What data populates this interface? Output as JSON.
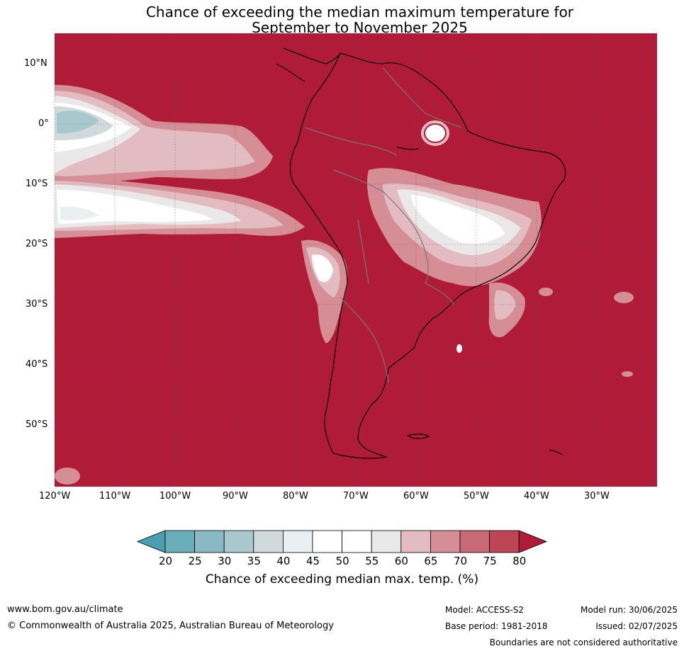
{
  "title_line1": "Chance of exceeding the median maximum temperature for",
  "title_line2": "September to November 2025",
  "lat_labels": [
    "10°N",
    "0°",
    "10°S",
    "20°S",
    "30°S",
    "40°S",
    "50°S"
  ],
  "lon_labels": [
    "120°W",
    "110°W",
    "100°W",
    "90°W",
    "80°W",
    "70°W",
    "60°W",
    "50°W",
    "40°W",
    "30°W"
  ],
  "colorbar": {
    "ticks": [
      "20",
      "25",
      "30",
      "35",
      "40",
      "45",
      "50",
      "55",
      "60",
      "65",
      "70",
      "75",
      "80"
    ],
    "colors": [
      "#6aaeba",
      "#8ab8c5",
      "#a8c8cd",
      "#d0dadc",
      "#eaf0f2",
      "#ffffff",
      "#ffffff",
      "#ebe8ea",
      "#e2bcc0",
      "#d68e96",
      "#c76a76",
      "#bc4556"
    ],
    "under_color": "#4aa0b0",
    "over_color": "#b01c38",
    "title": "Chance of exceeding median max. temp. (%)"
  },
  "footer": {
    "url": "www.bom.gov.au/climate",
    "copyright": "© Commonwealth of Australia 2025, Australian Bureau of Meteorology",
    "model": "Model: ACCESS-S2",
    "base_period": "Base period: 1981-2018",
    "model_run": "Model run: 30/06/2025",
    "issued": "Issued: 02/07/2025",
    "disclaimer": "Boundaries are not considered authoritative"
  }
}
